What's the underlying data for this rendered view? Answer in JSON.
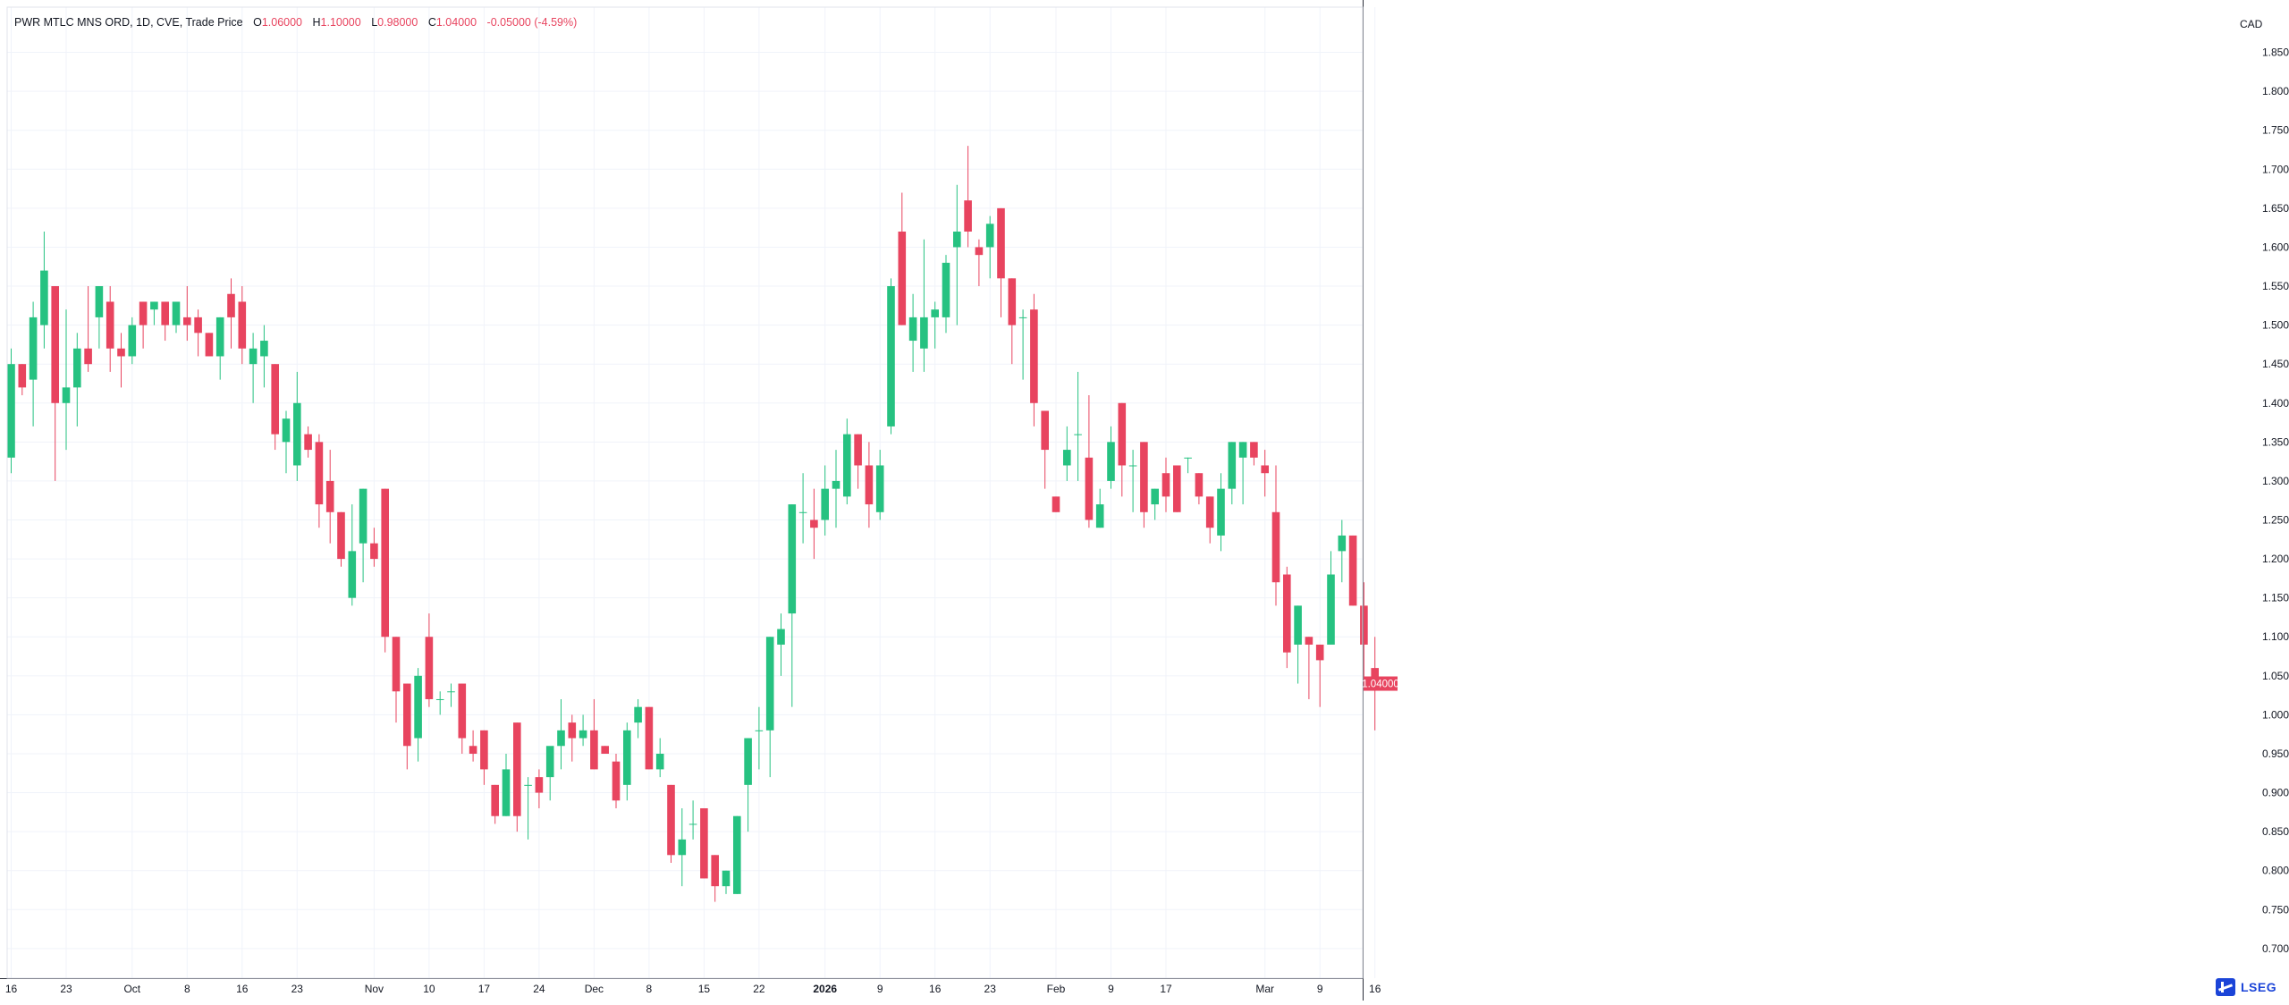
{
  "legend": {
    "symbol_label": "PWR MTLC MNS ORD, 1D, CVE, Trade Price",
    "o_key": "O",
    "o_val": "1.06000",
    "h_key": "H",
    "h_val": "1.10000",
    "l_key": "L",
    "l_val": "0.98000",
    "c_key": "C",
    "c_val": "1.04000",
    "change": "-0.05000 (-4.59%)"
  },
  "axis": {
    "currency": "CAD"
  },
  "logo": {
    "name": "LSEG"
  },
  "colors": {
    "up": "#26c281",
    "down": "#e8445f",
    "grid": "#f0f3fa",
    "axis_text": "#131722",
    "price_tag": "#e8445f"
  },
  "chart_data": {
    "type": "candlestick",
    "y_tick_labels": [
      "0.70000",
      "0.75000",
      "0.80000",
      "0.85000",
      "0.90000",
      "0.95000",
      "1.00000",
      "1.05000",
      "1.10000",
      "1.15000",
      "1.20000",
      "1.25000",
      "1.30000",
      "1.35000",
      "1.40000",
      "1.45000",
      "1.50000",
      "1.55000",
      "1.60000",
      "1.65000",
      "1.70000",
      "1.75000",
      "1.80000",
      "1.85000"
    ],
    "y_ticks": [
      0.7,
      0.75,
      0.8,
      0.85,
      0.9,
      0.95,
      1.0,
      1.05,
      1.1,
      1.15,
      1.2,
      1.25,
      1.3,
      1.35,
      1.4,
      1.45,
      1.5,
      1.55,
      1.6,
      1.65,
      1.7,
      1.75,
      1.8,
      1.85
    ],
    "ylim": [
      0.662,
      1.908
    ],
    "x_tick_labels": [
      {
        "i": 0,
        "label": "16"
      },
      {
        "i": 5,
        "label": "23"
      },
      {
        "i": 11,
        "label": "Oct"
      },
      {
        "i": 16,
        "label": "8"
      },
      {
        "i": 21,
        "label": "16"
      },
      {
        "i": 26,
        "label": "23"
      },
      {
        "i": 33,
        "label": "Nov"
      },
      {
        "i": 38,
        "label": "10"
      },
      {
        "i": 43,
        "label": "17"
      },
      {
        "i": 48,
        "label": "24"
      },
      {
        "i": 53,
        "label": "Dec"
      },
      {
        "i": 58,
        "label": "8"
      },
      {
        "i": 63,
        "label": "15"
      },
      {
        "i": 68,
        "label": "22"
      },
      {
        "i": 74,
        "label": "2026"
      },
      {
        "i": 79,
        "label": "9"
      },
      {
        "i": 84,
        "label": "16"
      },
      {
        "i": 89,
        "label": "23"
      },
      {
        "i": 95,
        "label": "Feb"
      },
      {
        "i": 100,
        "label": "9"
      },
      {
        "i": 105,
        "label": "17"
      },
      {
        "i": 114,
        "label": "Mar"
      },
      {
        "i": 119,
        "label": "9"
      },
      {
        "i": 124,
        "label": "16"
      }
    ],
    "last_price": 1.04,
    "last_price_label": "1.04000",
    "candles": [
      [
        1.33,
        1.47,
        1.31,
        1.45
      ],
      [
        1.45,
        1.45,
        1.41,
        1.42
      ],
      [
        1.43,
        1.53,
        1.37,
        1.51
      ],
      [
        1.5,
        1.62,
        1.47,
        1.57
      ],
      [
        1.55,
        1.55,
        1.3,
        1.4
      ],
      [
        1.4,
        1.52,
        1.34,
        1.42
      ],
      [
        1.42,
        1.49,
        1.37,
        1.47
      ],
      [
        1.47,
        1.55,
        1.44,
        1.45
      ],
      [
        1.51,
        1.55,
        1.47,
        1.55
      ],
      [
        1.53,
        1.55,
        1.44,
        1.47
      ],
      [
        1.47,
        1.49,
        1.42,
        1.46
      ],
      [
        1.46,
        1.51,
        1.45,
        1.5
      ],
      [
        1.53,
        1.53,
        1.47,
        1.5
      ],
      [
        1.52,
        1.53,
        1.5,
        1.53
      ],
      [
        1.53,
        1.53,
        1.48,
        1.5
      ],
      [
        1.5,
        1.53,
        1.49,
        1.53
      ],
      [
        1.51,
        1.55,
        1.48,
        1.5
      ],
      [
        1.51,
        1.52,
        1.46,
        1.49
      ],
      [
        1.49,
        1.49,
        1.46,
        1.46
      ],
      [
        1.46,
        1.51,
        1.43,
        1.51
      ],
      [
        1.54,
        1.56,
        1.47,
        1.51
      ],
      [
        1.53,
        1.55,
        1.45,
        1.47
      ],
      [
        1.45,
        1.49,
        1.4,
        1.47
      ],
      [
        1.46,
        1.5,
        1.42,
        1.48
      ],
      [
        1.45,
        1.45,
        1.34,
        1.36
      ],
      [
        1.35,
        1.39,
        1.31,
        1.38
      ],
      [
        1.32,
        1.44,
        1.3,
        1.4
      ],
      [
        1.36,
        1.37,
        1.33,
        1.34
      ],
      [
        1.35,
        1.36,
        1.24,
        1.27
      ],
      [
        1.3,
        1.34,
        1.22,
        1.26
      ],
      [
        1.26,
        1.26,
        1.19,
        1.2
      ],
      [
        1.15,
        1.27,
        1.14,
        1.21
      ],
      [
        1.22,
        1.29,
        1.17,
        1.29
      ],
      [
        1.22,
        1.24,
        1.19,
        1.2
      ],
      [
        1.29,
        1.29,
        1.08,
        1.1
      ],
      [
        1.1,
        1.1,
        0.99,
        1.03
      ],
      [
        1.04,
        1.04,
        0.93,
        0.96
      ],
      [
        0.97,
        1.06,
        0.94,
        1.05
      ],
      [
        1.1,
        1.13,
        1.01,
        1.02
      ],
      [
        1.02,
        1.03,
        1.0,
        1.02
      ],
      [
        1.03,
        1.04,
        1.01,
        1.03
      ],
      [
        1.04,
        1.04,
        0.95,
        0.97
      ],
      [
        0.96,
        0.98,
        0.94,
        0.95
      ],
      [
        0.98,
        0.98,
        0.91,
        0.93
      ],
      [
        0.91,
        0.91,
        0.86,
        0.87
      ],
      [
        0.87,
        0.95,
        0.87,
        0.93
      ],
      [
        0.99,
        0.99,
        0.85,
        0.87
      ],
      [
        0.91,
        0.92,
        0.84,
        0.91
      ],
      [
        0.92,
        0.93,
        0.88,
        0.9
      ],
      [
        0.92,
        0.95,
        0.89,
        0.96
      ],
      [
        0.96,
        1.02,
        0.93,
        0.98
      ],
      [
        0.99,
        1.0,
        0.94,
        0.97
      ],
      [
        0.97,
        1.0,
        0.96,
        0.98
      ],
      [
        0.98,
        1.02,
        0.93,
        0.93
      ],
      [
        0.96,
        0.96,
        0.95,
        0.95
      ],
      [
        0.94,
        0.95,
        0.88,
        0.89
      ],
      [
        0.91,
        0.99,
        0.89,
        0.98
      ],
      [
        0.99,
        1.02,
        0.97,
        1.01
      ],
      [
        1.01,
        1.01,
        0.93,
        0.93
      ],
      [
        0.93,
        0.97,
        0.92,
        0.95
      ],
      [
        0.91,
        0.91,
        0.81,
        0.82
      ],
      [
        0.82,
        0.88,
        0.78,
        0.84
      ],
      [
        0.86,
        0.89,
        0.84,
        0.86
      ],
      [
        0.88,
        0.88,
        0.79,
        0.79
      ],
      [
        0.82,
        0.82,
        0.76,
        0.78
      ],
      [
        0.78,
        0.8,
        0.77,
        0.8
      ],
      [
        0.77,
        0.87,
        0.77,
        0.87
      ],
      [
        0.91,
        0.97,
        0.85,
        0.97
      ],
      [
        0.98,
        1.01,
        0.93,
        0.98
      ],
      [
        0.98,
        1.1,
        0.92,
        1.1
      ],
      [
        1.09,
        1.13,
        1.05,
        1.11
      ],
      [
        1.13,
        1.27,
        1.01,
        1.27
      ],
      [
        1.26,
        1.31,
        1.22,
        1.26
      ],
      [
        1.25,
        1.29,
        1.2,
        1.24
      ],
      [
        1.25,
        1.32,
        1.23,
        1.29
      ],
      [
        1.29,
        1.34,
        1.24,
        1.3
      ],
      [
        1.28,
        1.38,
        1.27,
        1.36
      ],
      [
        1.36,
        1.36,
        1.29,
        1.32
      ],
      [
        1.32,
        1.35,
        1.24,
        1.27
      ],
      [
        1.26,
        1.34,
        1.25,
        1.32
      ],
      [
        1.37,
        1.56,
        1.36,
        1.55
      ],
      [
        1.62,
        1.67,
        1.5,
        1.5
      ],
      [
        1.48,
        1.54,
        1.44,
        1.51
      ],
      [
        1.47,
        1.61,
        1.44,
        1.51
      ],
      [
        1.51,
        1.53,
        1.47,
        1.52
      ],
      [
        1.51,
        1.59,
        1.49,
        1.58
      ],
      [
        1.6,
        1.68,
        1.5,
        1.62
      ],
      [
        1.66,
        1.73,
        1.6,
        1.62
      ],
      [
        1.6,
        1.61,
        1.55,
        1.59
      ],
      [
        1.6,
        1.64,
        1.56,
        1.63
      ],
      [
        1.65,
        1.65,
        1.51,
        1.56
      ],
      [
        1.56,
        1.56,
        1.45,
        1.5
      ],
      [
        1.51,
        1.52,
        1.43,
        1.51
      ],
      [
        1.52,
        1.54,
        1.37,
        1.4
      ],
      [
        1.39,
        1.39,
        1.29,
        1.34
      ],
      [
        1.28,
        1.28,
        1.26,
        1.26
      ],
      [
        1.32,
        1.37,
        1.3,
        1.34
      ],
      [
        1.36,
        1.44,
        1.3,
        1.36
      ],
      [
        1.33,
        1.41,
        1.24,
        1.25
      ],
      [
        1.24,
        1.29,
        1.24,
        1.27
      ],
      [
        1.3,
        1.37,
        1.29,
        1.35
      ],
      [
        1.4,
        1.4,
        1.28,
        1.32
      ],
      [
        1.32,
        1.34,
        1.26,
        1.32
      ],
      [
        1.35,
        1.35,
        1.24,
        1.26
      ],
      [
        1.27,
        1.29,
        1.25,
        1.29
      ],
      [
        1.31,
        1.33,
        1.26,
        1.28
      ],
      [
        1.32,
        1.32,
        1.26,
        1.26
      ],
      [
        1.33,
        1.33,
        1.31,
        1.33
      ],
      [
        1.31,
        1.31,
        1.27,
        1.28
      ],
      [
        1.28,
        1.28,
        1.22,
        1.24
      ],
      [
        1.23,
        1.31,
        1.21,
        1.29
      ],
      [
        1.29,
        1.35,
        1.27,
        1.35
      ],
      [
        1.33,
        1.35,
        1.27,
        1.35
      ],
      [
        1.35,
        1.35,
        1.32,
        1.33
      ],
      [
        1.32,
        1.34,
        1.28,
        1.31
      ],
      [
        1.26,
        1.32,
        1.14,
        1.17
      ],
      [
        1.18,
        1.19,
        1.06,
        1.08
      ],
      [
        1.09,
        1.14,
        1.04,
        1.14
      ],
      [
        1.1,
        1.1,
        1.02,
        1.09
      ],
      [
        1.09,
        1.09,
        1.01,
        1.07
      ],
      [
        1.09,
        1.21,
        1.09,
        1.18
      ],
      [
        1.21,
        1.25,
        1.17,
        1.23
      ],
      [
        1.23,
        1.23,
        1.14,
        1.14
      ],
      [
        1.14,
        1.17,
        1.04,
        1.09
      ],
      [
        1.06,
        1.1,
        0.98,
        1.04
      ]
    ]
  }
}
